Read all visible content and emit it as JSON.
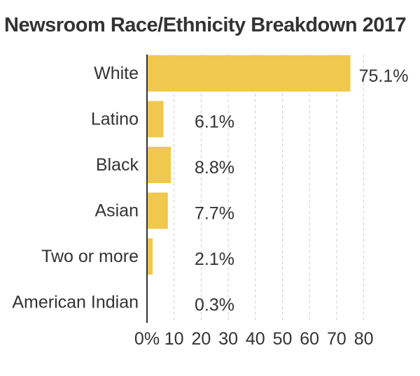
{
  "chart_data": {
    "type": "bar",
    "orientation": "horizontal",
    "title": "Newsroom Race/Ethnicity Breakdown 2017",
    "categories": [
      "White",
      "Latino",
      "Black",
      "Asian",
      "Two or more",
      "American Indian"
    ],
    "values": [
      75.1,
      6.1,
      8.8,
      7.7,
      2.1,
      0.3
    ],
    "value_labels": [
      "75.1%",
      "6.1%",
      "8.8%",
      "7.7%",
      "2.1%",
      "0.3%"
    ],
    "xlim": [
      0,
      80
    ],
    "x_ticks": [
      0,
      10,
      20,
      30,
      40,
      50,
      60,
      70,
      80
    ],
    "x_tick_labels": [
      "0%",
      "10",
      "20",
      "30",
      "40",
      "50",
      "60",
      "70",
      "80"
    ],
    "xlabel": "",
    "ylabel": "",
    "grid": true,
    "grid_style": "dashed vertical",
    "bar_color": "#f0c84e",
    "text_color": "#333333",
    "grid_color": "#cccccc"
  }
}
